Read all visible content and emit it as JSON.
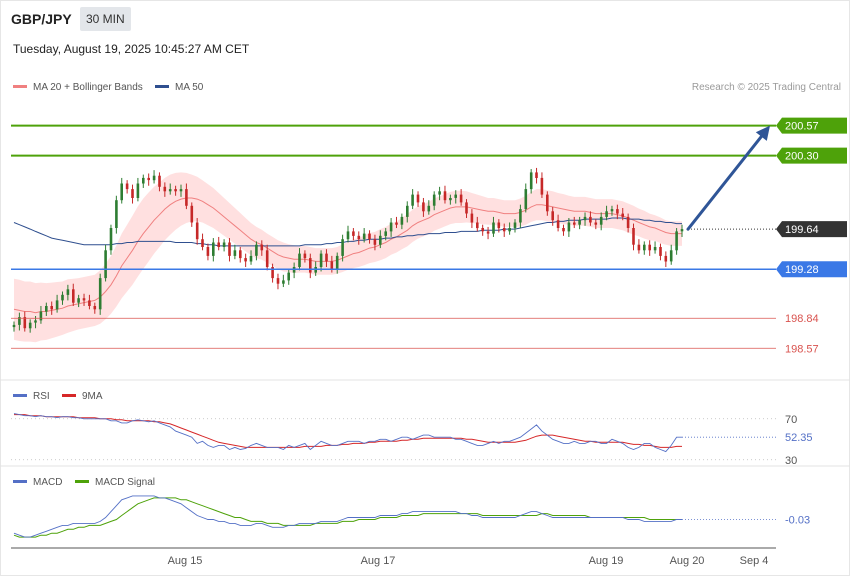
{
  "header": {
    "symbol": "GBP/JPY",
    "timeframe": "30 MIN",
    "datetime": "Tuesday, August 19, 2025 10:45:27 AM CET",
    "credit": "Research © 2025 Trading Central"
  },
  "colors": {
    "resistance": "#4ea20a",
    "support_blue": "#3a78e6",
    "minor_support": "#d9534f",
    "current": "#333333",
    "ma20": "#f08080",
    "bands_fill": "#ffd6d6",
    "ma50": "#2f4f8f",
    "rsi": "#5470c6",
    "rsi_ma": "#d62728",
    "macd": "#5470c6",
    "macd_signal": "#4ea20a",
    "candle_up": "#2e7d32",
    "candle_down": "#c62828",
    "arrow": "#2f5597"
  },
  "chart_data": [
    {
      "type": "candlestick",
      "panel": "price",
      "legend": [
        {
          "name": "MA 20 + Bollinger Bands",
          "color": "#f08080"
        },
        {
          "name": "MA 50",
          "color": "#2f4f8f"
        }
      ],
      "ylim": [
        198.33,
        200.8
      ],
      "x_ticks": [
        "Aug 15",
        "Aug 17",
        "Aug 19",
        "Aug 20",
        "Sep 4"
      ],
      "levels": [
        {
          "value": 200.57,
          "label": "200.57",
          "kind": "resistance"
        },
        {
          "value": 200.3,
          "label": "200.30",
          "kind": "resistance"
        },
        {
          "value": 199.64,
          "label": "199.64",
          "kind": "current"
        },
        {
          "value": 199.28,
          "label": "199.28",
          "kind": "pivot"
        },
        {
          "value": 198.84,
          "label": "198.84",
          "kind": "support"
        },
        {
          "value": 198.57,
          "label": "198.57",
          "kind": "support"
        }
      ],
      "projection": {
        "from": 199.64,
        "to": 200.57,
        "direction": "up"
      },
      "closes": [
        198.78,
        198.85,
        198.75,
        198.8,
        198.82,
        198.9,
        198.95,
        198.92,
        199.0,
        199.05,
        199.1,
        198.98,
        199.02,
        199.0,
        198.95,
        198.92,
        199.2,
        199.45,
        199.65,
        199.9,
        200.05,
        200.0,
        199.92,
        200.05,
        200.1,
        200.08,
        200.12,
        200.02,
        199.98,
        200.0,
        199.98,
        200.0,
        199.85,
        199.7,
        199.55,
        199.48,
        199.4,
        199.52,
        199.48,
        199.52,
        199.4,
        199.45,
        199.38,
        199.35,
        199.4,
        199.5,
        199.45,
        199.3,
        199.2,
        199.15,
        199.18,
        199.25,
        199.3,
        199.42,
        199.38,
        199.25,
        199.3,
        199.42,
        199.35,
        199.28,
        199.4,
        199.55,
        199.62,
        199.58,
        199.55,
        199.6,
        199.55,
        199.5,
        199.58,
        199.62,
        199.7,
        199.68,
        199.75,
        199.85,
        199.95,
        199.88,
        199.8,
        199.85,
        199.95,
        199.98,
        199.9,
        199.92,
        199.95,
        199.88,
        199.78,
        199.7,
        199.65,
        199.62,
        199.6,
        199.7,
        199.65,
        199.62,
        199.65,
        199.7,
        199.82,
        200.0,
        200.15,
        200.1,
        199.95,
        199.8,
        199.72,
        199.65,
        199.62,
        199.7,
        199.68,
        199.72,
        199.75,
        199.7,
        199.68,
        199.75,
        199.8,
        199.82,
        199.78,
        199.75,
        199.65,
        199.5,
        199.45,
        199.5,
        199.45,
        199.48,
        199.4,
        199.35,
        199.45,
        199.62,
        199.64
      ],
      "ma20": [
        198.92,
        198.91,
        198.9,
        198.9,
        198.89,
        198.9,
        198.9,
        198.91,
        198.92,
        198.93,
        198.95,
        198.96,
        198.97,
        198.98,
        198.99,
        199.0,
        199.03,
        199.08,
        199.14,
        199.22,
        199.31,
        199.38,
        199.45,
        199.53,
        199.6,
        199.66,
        199.72,
        199.77,
        199.82,
        199.86,
        199.89,
        199.91,
        199.92,
        199.92,
        199.91,
        199.89,
        199.86,
        199.83,
        199.79,
        199.75,
        199.71,
        199.67,
        199.63,
        199.59,
        199.55,
        199.52,
        199.5,
        199.47,
        199.44,
        199.41,
        199.39,
        199.38,
        199.37,
        199.37,
        199.37,
        199.36,
        199.35,
        199.35,
        199.35,
        199.35,
        199.36,
        199.38,
        199.4,
        199.42,
        199.43,
        199.45,
        199.47,
        199.48,
        199.5,
        199.52,
        199.55,
        199.57,
        199.6,
        199.63,
        199.67,
        199.7,
        199.72,
        199.74,
        199.77,
        199.79,
        199.81,
        199.83,
        199.84,
        199.84,
        199.84,
        199.83,
        199.82,
        199.81,
        199.8,
        199.8,
        199.79,
        199.78,
        199.78,
        199.78,
        199.79,
        199.81,
        199.84,
        199.86,
        199.86,
        199.85,
        199.84,
        199.83,
        199.82,
        199.81,
        199.8,
        199.8,
        199.8,
        199.79,
        199.78,
        199.78,
        199.78,
        199.78,
        199.77,
        199.76,
        199.74,
        199.72,
        199.7,
        199.68,
        199.66,
        199.65,
        199.63,
        199.61,
        199.6,
        199.6,
        199.6
      ],
      "bb_width": [
        0.55,
        0.55,
        0.54,
        0.54,
        0.53,
        0.52,
        0.51,
        0.5,
        0.49,
        0.48,
        0.48,
        0.47,
        0.46,
        0.46,
        0.46,
        0.46,
        0.48,
        0.5,
        0.52,
        0.55,
        0.58,
        0.6,
        0.62,
        0.63,
        0.63,
        0.62,
        0.6,
        0.58,
        0.56,
        0.54,
        0.51,
        0.48,
        0.45,
        0.42,
        0.4,
        0.38,
        0.37,
        0.36,
        0.35,
        0.34,
        0.33,
        0.32,
        0.31,
        0.3,
        0.29,
        0.28,
        0.27,
        0.26,
        0.26,
        0.26,
        0.26,
        0.25,
        0.25,
        0.24,
        0.24,
        0.24,
        0.24,
        0.24,
        0.24,
        0.24,
        0.24,
        0.25,
        0.25,
        0.26,
        0.26,
        0.27,
        0.27,
        0.27,
        0.28,
        0.28,
        0.28,
        0.28,
        0.28,
        0.29,
        0.29,
        0.29,
        0.29,
        0.29,
        0.29,
        0.29,
        0.29,
        0.29,
        0.29,
        0.29,
        0.28,
        0.27,
        0.26,
        0.25,
        0.24,
        0.24,
        0.24,
        0.24,
        0.24,
        0.24,
        0.25,
        0.26,
        0.27,
        0.28,
        0.28,
        0.28,
        0.28,
        0.27,
        0.27,
        0.26,
        0.26,
        0.26,
        0.26,
        0.26,
        0.26,
        0.26,
        0.26,
        0.26,
        0.26,
        0.26,
        0.26,
        0.26,
        0.25,
        0.25,
        0.24,
        0.23,
        0.23,
        0.22,
        0.22,
        0.22,
        0.22
      ],
      "ma50": [
        199.7,
        199.68,
        199.66,
        199.64,
        199.62,
        199.6,
        199.58,
        199.56,
        199.55,
        199.54,
        199.53,
        199.52,
        199.51,
        199.5,
        199.5,
        199.5,
        199.5,
        199.5,
        199.5,
        199.51,
        199.51,
        199.52,
        199.52,
        199.53,
        199.53,
        199.53,
        199.53,
        199.53,
        199.53,
        199.53,
        199.52,
        199.52,
        199.52,
        199.52,
        199.51,
        199.51,
        199.5,
        199.5,
        199.49,
        199.49,
        199.49,
        199.49,
        199.49,
        199.49,
        199.49,
        199.49,
        199.49,
        199.49,
        199.49,
        199.49,
        199.49,
        199.49,
        199.49,
        199.49,
        199.5,
        199.5,
        199.5,
        199.5,
        199.51,
        199.51,
        199.52,
        199.52,
        199.53,
        199.53,
        199.54,
        199.54,
        199.55,
        199.55,
        199.55,
        199.56,
        199.56,
        199.57,
        199.57,
        199.58,
        199.58,
        199.59,
        199.59,
        199.6,
        199.6,
        199.6,
        199.61,
        199.61,
        199.61,
        199.62,
        199.62,
        199.62,
        199.62,
        199.63,
        199.63,
        199.63,
        199.63,
        199.64,
        199.64,
        199.64,
        199.65,
        199.66,
        199.67,
        199.68,
        199.69,
        199.7,
        199.7,
        199.71,
        199.71,
        199.72,
        199.72,
        199.72,
        199.73,
        199.73,
        199.73,
        199.73,
        199.73,
        199.74,
        199.74,
        199.74,
        199.73,
        199.73,
        199.73,
        199.72,
        199.72,
        199.71,
        199.71,
        199.7,
        199.7,
        199.69,
        199.69
      ]
    },
    {
      "type": "line",
      "panel": "rsi",
      "legend": [
        {
          "name": "RSI",
          "color": "#5470c6"
        },
        {
          "name": "9MA",
          "color": "#d62728"
        }
      ],
      "ylim": [
        20,
        100
      ],
      "y_ticks": [
        "70",
        "30"
      ],
      "ref_lines": [
        70,
        30
      ],
      "current_label": "52.35",
      "rsi": [
        75,
        74,
        73,
        73,
        72,
        73,
        72,
        72,
        71,
        72,
        72,
        71,
        71,
        70,
        70,
        70,
        70,
        70,
        68,
        68,
        66,
        66,
        68,
        69,
        68,
        67,
        68,
        66,
        64,
        62,
        58,
        56,
        54,
        52,
        46,
        48,
        44,
        42,
        44,
        44,
        40,
        42,
        40,
        41,
        44,
        46,
        44,
        42,
        42,
        42,
        40,
        44,
        42,
        44,
        46,
        40,
        44,
        48,
        46,
        44,
        44,
        46,
        48,
        48,
        48,
        46,
        48,
        48,
        50,
        50,
        48,
        50,
        52,
        52,
        50,
        52,
        54,
        54,
        52,
        52,
        52,
        52,
        50,
        50,
        48,
        46,
        44,
        44,
        46,
        48,
        46,
        48,
        48,
        50,
        52,
        56,
        60,
        64,
        58,
        54,
        50,
        48,
        46,
        46,
        48,
        46,
        46,
        48,
        48,
        46,
        46,
        50,
        48,
        46,
        42,
        40,
        42,
        46,
        46,
        42,
        40,
        38,
        44,
        52,
        52
      ],
      "rsi_ma": [
        74,
        74,
        74,
        73,
        73,
        73,
        72,
        72,
        72,
        72,
        72,
        72,
        71,
        71,
        71,
        71,
        70,
        70,
        70,
        69,
        69,
        68,
        68,
        68,
        68,
        68,
        67,
        67,
        66,
        65,
        63,
        61,
        59,
        57,
        55,
        53,
        51,
        49,
        47,
        46,
        45,
        44,
        43,
        42,
        42,
        42,
        42,
        42,
        42,
        42,
        42,
        42,
        42,
        42,
        43,
        43,
        43,
        43,
        44,
        44,
        44,
        45,
        45,
        46,
        46,
        46,
        47,
        47,
        48,
        48,
        48,
        48,
        49,
        49,
        50,
        50,
        51,
        51,
        51,
        51,
        51,
        51,
        51,
        51,
        50,
        50,
        49,
        48,
        47,
        47,
        47,
        47,
        47,
        47,
        48,
        49,
        51,
        53,
        54,
        54,
        54,
        53,
        52,
        51,
        50,
        49,
        48,
        48,
        47,
        47,
        47,
        47,
        47,
        47,
        46,
        45,
        45,
        44,
        44,
        43,
        42,
        42,
        42,
        43,
        43
      ]
    },
    {
      "type": "line",
      "panel": "macd",
      "legend": [
        {
          "name": "MACD",
          "color": "#5470c6"
        },
        {
          "name": "MACD Signal",
          "color": "#4ea20a"
        }
      ],
      "ylim": [
        -0.16,
        0.12
      ],
      "current_label": "-0.03",
      "macd": [
        -0.1,
        -0.11,
        -0.12,
        -0.12,
        -0.11,
        -0.1,
        -0.09,
        -0.08,
        -0.07,
        -0.06,
        -0.06,
        -0.05,
        -0.05,
        -0.05,
        -0.05,
        -0.05,
        -0.04,
        -0.02,
        0.01,
        0.04,
        0.07,
        0.08,
        0.09,
        0.09,
        0.09,
        0.09,
        0.09,
        0.08,
        0.08,
        0.07,
        0.06,
        0.05,
        0.03,
        0.01,
        -0.01,
        -0.02,
        -0.03,
        -0.03,
        -0.04,
        -0.04,
        -0.05,
        -0.05,
        -0.06,
        -0.06,
        -0.06,
        -0.05,
        -0.05,
        -0.06,
        -0.07,
        -0.07,
        -0.07,
        -0.06,
        -0.06,
        -0.05,
        -0.05,
        -0.05,
        -0.05,
        -0.04,
        -0.04,
        -0.04,
        -0.04,
        -0.03,
        -0.02,
        -0.02,
        -0.02,
        -0.02,
        -0.02,
        -0.02,
        -0.01,
        -0.01,
        -0.01,
        -0.01,
        0.0,
        0.0,
        0.01,
        0.01,
        0.01,
        0.01,
        0.01,
        0.01,
        0.01,
        0.01,
        0.01,
        0.0,
        0.0,
        -0.01,
        -0.01,
        -0.02,
        -0.02,
        -0.02,
        -0.02,
        -0.02,
        -0.02,
        -0.02,
        -0.01,
        0.0,
        0.01,
        0.01,
        0.0,
        -0.01,
        -0.02,
        -0.02,
        -0.02,
        -0.02,
        -0.02,
        -0.02,
        -0.02,
        -0.02,
        -0.02,
        -0.02,
        -0.02,
        -0.02,
        -0.02,
        -0.02,
        -0.03,
        -0.03,
        -0.03,
        -0.04,
        -0.04,
        -0.04,
        -0.04,
        -0.04,
        -0.04,
        -0.03,
        -0.03
      ],
      "signal": [
        -0.11,
        -0.12,
        -0.12,
        -0.12,
        -0.12,
        -0.11,
        -0.11,
        -0.1,
        -0.1,
        -0.09,
        -0.08,
        -0.08,
        -0.07,
        -0.07,
        -0.06,
        -0.06,
        -0.06,
        -0.05,
        -0.04,
        -0.03,
        -0.01,
        0.01,
        0.03,
        0.05,
        0.06,
        0.07,
        0.08,
        0.08,
        0.08,
        0.08,
        0.08,
        0.07,
        0.07,
        0.06,
        0.05,
        0.04,
        0.03,
        0.02,
        0.01,
        0.0,
        -0.01,
        -0.02,
        -0.02,
        -0.03,
        -0.04,
        -0.04,
        -0.04,
        -0.05,
        -0.05,
        -0.05,
        -0.06,
        -0.06,
        -0.06,
        -0.06,
        -0.06,
        -0.06,
        -0.05,
        -0.05,
        -0.05,
        -0.05,
        -0.05,
        -0.04,
        -0.04,
        -0.04,
        -0.03,
        -0.03,
        -0.03,
        -0.03,
        -0.02,
        -0.02,
        -0.02,
        -0.02,
        -0.01,
        -0.01,
        -0.01,
        -0.01,
        0.0,
        0.0,
        0.0,
        0.0,
        0.0,
        0.0,
        0.0,
        0.0,
        0.0,
        0.0,
        0.0,
        -0.01,
        -0.01,
        -0.01,
        -0.01,
        -0.01,
        -0.01,
        -0.01,
        -0.01,
        -0.01,
        -0.01,
        -0.01,
        0.0,
        0.0,
        -0.01,
        -0.01,
        -0.01,
        -0.01,
        -0.01,
        -0.01,
        -0.01,
        -0.02,
        -0.02,
        -0.02,
        -0.02,
        -0.02,
        -0.02,
        -0.02,
        -0.02,
        -0.02,
        -0.02,
        -0.02,
        -0.03,
        -0.03,
        -0.03,
        -0.03,
        -0.03,
        -0.03,
        -0.03
      ]
    }
  ]
}
